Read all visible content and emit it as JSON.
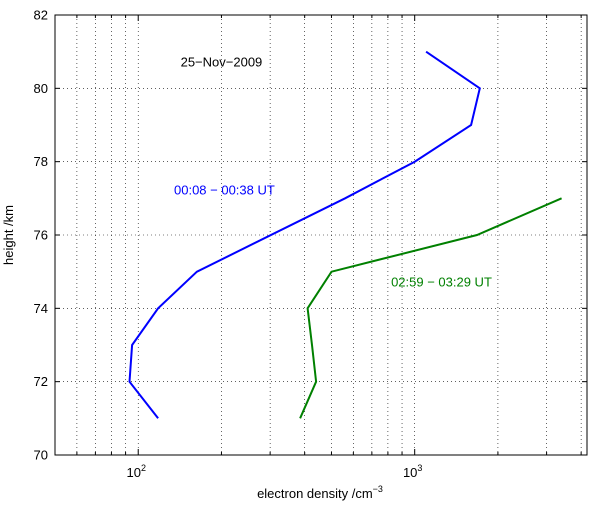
{
  "chart_data": {
    "type": "line",
    "title": "",
    "xlabel": "electron density /cm",
    "xlabel_sup": "−3",
    "ylabel": "height /km",
    "xscale": "log",
    "xlim": [
      50,
      4200
    ],
    "ylim": [
      70,
      82
    ],
    "grid": "dotted",
    "y_ticks": [
      70,
      72,
      74,
      76,
      78,
      80,
      82
    ],
    "x_major_ticks": [
      100,
      1000
    ],
    "x_tick_labels": [
      {
        "base": "10",
        "exp": "2"
      },
      {
        "base": "10",
        "exp": "3"
      }
    ],
    "x_minor_ticks": [
      60,
      70,
      80,
      90,
      200,
      300,
      400,
      500,
      600,
      700,
      800,
      900,
      2000,
      3000,
      4000
    ],
    "annotations": [
      {
        "text": "25−Nov−2009",
        "x": 200,
        "y": 80.6,
        "color": "#000000"
      },
      {
        "text": "00:08 − 00:38 UT",
        "x": 205,
        "y": 77.1,
        "color": "#0000ff"
      },
      {
        "text": "02:59 − 03:29 UT",
        "x": 1250,
        "y": 74.6,
        "color": "#008000"
      }
    ],
    "series": [
      {
        "color": "#0000ff",
        "points": [
          {
            "x": 118,
            "y": 71
          },
          {
            "x": 93,
            "y": 72
          },
          {
            "x": 95,
            "y": 73
          },
          {
            "x": 118,
            "y": 74
          },
          {
            "x": 163,
            "y": 75
          },
          {
            "x": 560,
            "y": 77
          },
          {
            "x": 1000,
            "y": 78
          },
          {
            "x": 1600,
            "y": 79
          },
          {
            "x": 1720,
            "y": 80
          },
          {
            "x": 1100,
            "y": 81
          }
        ]
      },
      {
        "color": "#008000",
        "points": [
          {
            "x": 385,
            "y": 71
          },
          {
            "x": 440,
            "y": 72
          },
          {
            "x": 425,
            "y": 73
          },
          {
            "x": 410,
            "y": 74
          },
          {
            "x": 500,
            "y": 75
          },
          {
            "x": 1680,
            "y": 76
          },
          {
            "x": 3400,
            "y": 77
          }
        ]
      }
    ]
  }
}
